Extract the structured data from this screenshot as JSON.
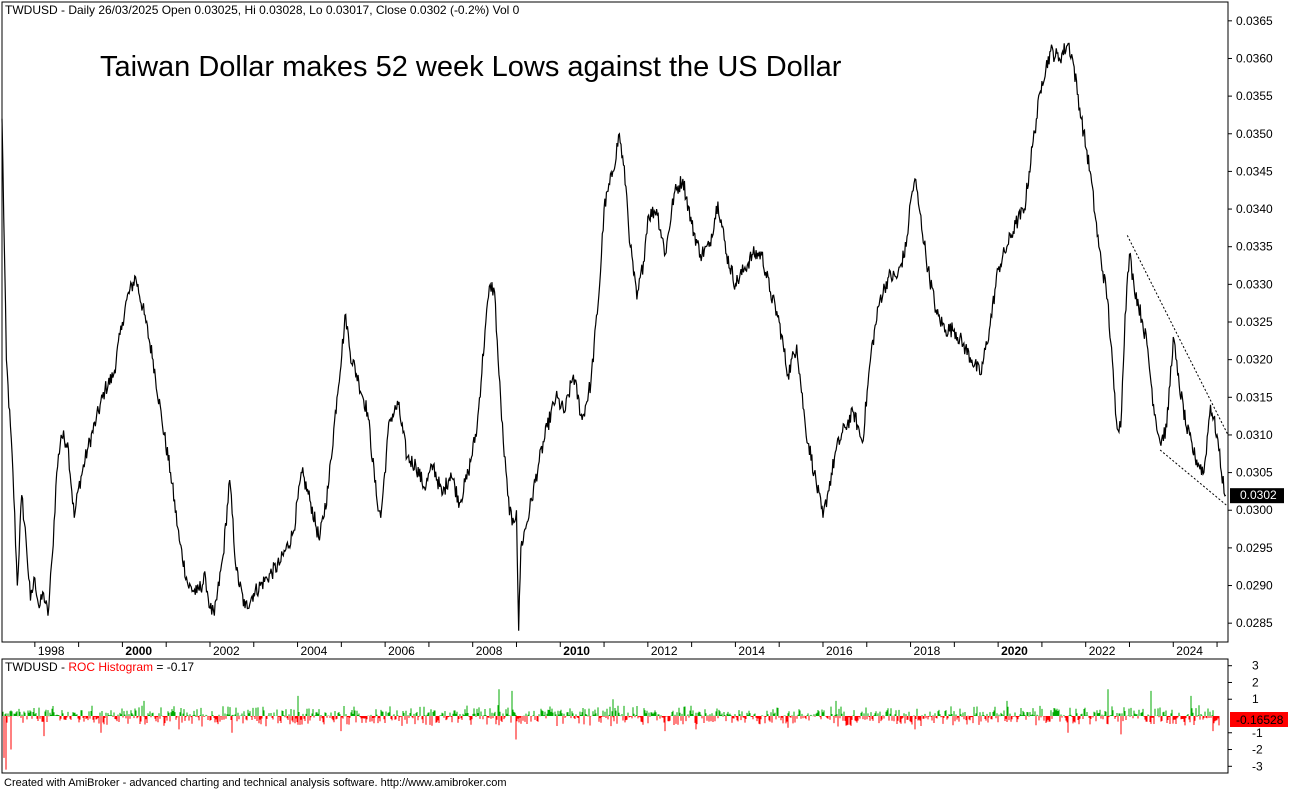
{
  "header": {
    "main_info": "TWDUSD - Daily 26/03/2025 Open 0.03025, Hi 0.03028, Lo 0.03017, Close 0.0302 (-0.2%) Vol 0",
    "sub_symbol": "TWDUSD - ",
    "sub_indicator": "ROC Histogram",
    "sub_value": " = -0.17"
  },
  "footer": "Created with AmiBroker - advanced charting and technical analysis software. http://www.amibroker.com",
  "colors": {
    "price_line": "#000000",
    "roc_up": "#00aa00",
    "roc_down": "#ff0000",
    "last_bg": "#000000",
    "roc_last_bg": "#ff0000"
  },
  "chart_data": [
    {
      "type": "line",
      "title": "Taiwan Dollar makes 52 week Lows against the US Dollar",
      "series_name": "TWDUSD",
      "x_label_ticks": [
        {
          "label": "1998",
          "year": 1998,
          "bold": false
        },
        {
          "label": "2000",
          "year": 2000,
          "bold": true
        },
        {
          "label": "2002",
          "year": 2002,
          "bold": false
        },
        {
          "label": "2004",
          "year": 2004,
          "bold": false
        },
        {
          "label": "2006",
          "year": 2006,
          "bold": false
        },
        {
          "label": "2008",
          "year": 2008,
          "bold": false
        },
        {
          "label": "2010",
          "year": 2010,
          "bold": true
        },
        {
          "label": "2012",
          "year": 2012,
          "bold": false
        },
        {
          "label": "2014",
          "year": 2014,
          "bold": false
        },
        {
          "label": "2016",
          "year": 2016,
          "bold": false
        },
        {
          "label": "2018",
          "year": 2018,
          "bold": false
        },
        {
          "label": "2020",
          "year": 2020,
          "bold": true
        },
        {
          "label": "2022",
          "year": 2022,
          "bold": false
        },
        {
          "label": "2024",
          "year": 2024,
          "bold": false
        }
      ],
      "y_ticks": [
        "0.0285",
        "0.0290",
        "0.0295",
        "0.0300",
        "0.0305",
        "0.0310",
        "0.0315",
        "0.0320",
        "0.0325",
        "0.0330",
        "0.0335",
        "0.0340",
        "0.0345",
        "0.0350",
        "0.0355",
        "0.0360",
        "0.0365"
      ],
      "ylim": [
        0.02825,
        0.03675
      ],
      "xlim": [
        1997.25,
        2025.25
      ],
      "last_value_label": "0.0302",
      "last_value": 0.0302,
      "points": [
        [
          1997.25,
          0.0352
        ],
        [
          1997.35,
          0.032
        ],
        [
          1997.5,
          0.0305
        ],
        [
          1997.6,
          0.029
        ],
        [
          1997.7,
          0.0302
        ],
        [
          1997.8,
          0.0296
        ],
        [
          1997.9,
          0.0288
        ],
        [
          1998.0,
          0.0291
        ],
        [
          1998.1,
          0.0287
        ],
        [
          1998.2,
          0.0289
        ],
        [
          1998.3,
          0.0286
        ],
        [
          1998.4,
          0.0294
        ],
        [
          1998.5,
          0.0305
        ],
        [
          1998.6,
          0.031
        ],
        [
          1998.75,
          0.0309
        ],
        [
          1998.9,
          0.0299
        ],
        [
          1999.0,
          0.0303
        ],
        [
          1999.2,
          0.0308
        ],
        [
          1999.4,
          0.0312
        ],
        [
          1999.6,
          0.0316
        ],
        [
          1999.8,
          0.0318
        ],
        [
          2000.0,
          0.0325
        ],
        [
          2000.1,
          0.0328
        ],
        [
          2000.3,
          0.0331
        ],
        [
          2000.5,
          0.0326
        ],
        [
          2000.7,
          0.032
        ],
        [
          2000.9,
          0.0312
        ],
        [
          2001.1,
          0.0305
        ],
        [
          2001.3,
          0.0296
        ],
        [
          2001.5,
          0.029
        ],
        [
          2001.7,
          0.0289
        ],
        [
          2001.9,
          0.0291
        ],
        [
          2002.0,
          0.0287
        ],
        [
          2002.1,
          0.0286
        ],
        [
          2002.3,
          0.0294
        ],
        [
          2002.45,
          0.0304
        ],
        [
          2002.6,
          0.0292
        ],
        [
          2002.8,
          0.0287
        ],
        [
          2003.0,
          0.0289
        ],
        [
          2003.3,
          0.0291
        ],
        [
          2003.6,
          0.0293
        ],
        [
          2003.9,
          0.0297
        ],
        [
          2004.1,
          0.0305
        ],
        [
          2004.3,
          0.0301
        ],
        [
          2004.5,
          0.0296
        ],
        [
          2004.7,
          0.0303
        ],
        [
          2004.9,
          0.0315
        ],
        [
          2005.1,
          0.0326
        ],
        [
          2005.2,
          0.0321
        ],
        [
          2005.4,
          0.0317
        ],
        [
          2005.6,
          0.0313
        ],
        [
          2005.8,
          0.0302
        ],
        [
          2005.9,
          0.0299
        ],
        [
          2006.1,
          0.0312
        ],
        [
          2006.3,
          0.0314
        ],
        [
          2006.5,
          0.0307
        ],
        [
          2006.7,
          0.0306
        ],
        [
          2006.9,
          0.0303
        ],
        [
          2007.1,
          0.0306
        ],
        [
          2007.3,
          0.0302
        ],
        [
          2007.5,
          0.0305
        ],
        [
          2007.7,
          0.0301
        ],
        [
          2007.9,
          0.0305
        ],
        [
          2008.1,
          0.0311
        ],
        [
          2008.3,
          0.0325
        ],
        [
          2008.4,
          0.033
        ],
        [
          2008.5,
          0.0329
        ],
        [
          2008.6,
          0.0318
        ],
        [
          2008.7,
          0.0309
        ],
        [
          2008.8,
          0.0302
        ],
        [
          2008.9,
          0.0298
        ],
        [
          2009.0,
          0.03
        ],
        [
          2009.05,
          0.0284
        ],
        [
          2009.1,
          0.0295
        ],
        [
          2009.3,
          0.03
        ],
        [
          2009.5,
          0.0306
        ],
        [
          2009.7,
          0.0311
        ],
        [
          2009.9,
          0.0315
        ],
        [
          2010.1,
          0.0313
        ],
        [
          2010.3,
          0.0318
        ],
        [
          2010.5,
          0.0312
        ],
        [
          2010.7,
          0.0317
        ],
        [
          2010.9,
          0.033
        ],
        [
          2011.0,
          0.034
        ],
        [
          2011.2,
          0.0345
        ],
        [
          2011.35,
          0.035
        ],
        [
          2011.5,
          0.0343
        ],
        [
          2011.6,
          0.0335
        ],
        [
          2011.75,
          0.0328
        ],
        [
          2011.9,
          0.0333
        ],
        [
          2012.0,
          0.0339
        ],
        [
          2012.2,
          0.034
        ],
        [
          2012.4,
          0.0334
        ],
        [
          2012.6,
          0.0342
        ],
        [
          2012.8,
          0.0344
        ],
        [
          2013.0,
          0.0338
        ],
        [
          2013.2,
          0.0334
        ],
        [
          2013.4,
          0.0335
        ],
        [
          2013.6,
          0.0341
        ],
        [
          2013.8,
          0.0334
        ],
        [
          2014.0,
          0.033
        ],
        [
          2014.2,
          0.0332
        ],
        [
          2014.4,
          0.0334
        ],
        [
          2014.6,
          0.0334
        ],
        [
          2014.8,
          0.0329
        ],
        [
          2015.0,
          0.0325
        ],
        [
          2015.2,
          0.0318
        ],
        [
          2015.4,
          0.0322
        ],
        [
          2015.6,
          0.0311
        ],
        [
          2015.8,
          0.0305
        ],
        [
          2016.0,
          0.0299
        ],
        [
          2016.1,
          0.0302
        ],
        [
          2016.3,
          0.0308
        ],
        [
          2016.5,
          0.0311
        ],
        [
          2016.7,
          0.0313
        ],
        [
          2016.9,
          0.0309
        ],
        [
          2017.1,
          0.0321
        ],
        [
          2017.3,
          0.0328
        ],
        [
          2017.5,
          0.0331
        ],
        [
          2017.7,
          0.0331
        ],
        [
          2017.9,
          0.0335
        ],
        [
          2018.0,
          0.0341
        ],
        [
          2018.1,
          0.0344
        ],
        [
          2018.2,
          0.034
        ],
        [
          2018.4,
          0.0332
        ],
        [
          2018.6,
          0.0326
        ],
        [
          2018.8,
          0.0324
        ],
        [
          2019.0,
          0.0324
        ],
        [
          2019.2,
          0.0322
        ],
        [
          2019.4,
          0.032
        ],
        [
          2019.6,
          0.0318
        ],
        [
          2019.8,
          0.0324
        ],
        [
          2020.0,
          0.0332
        ],
        [
          2020.2,
          0.0335
        ],
        [
          2020.4,
          0.0338
        ],
        [
          2020.6,
          0.034
        ],
        [
          2020.8,
          0.0349
        ],
        [
          2021.0,
          0.0357
        ],
        [
          2021.2,
          0.0361
        ],
        [
          2021.4,
          0.036
        ],
        [
          2021.6,
          0.0362
        ],
        [
          2021.7,
          0.036
        ],
        [
          2021.9,
          0.0352
        ],
        [
          2022.1,
          0.0345
        ],
        [
          2022.3,
          0.0335
        ],
        [
          2022.5,
          0.0328
        ],
        [
          2022.7,
          0.0312
        ],
        [
          2022.8,
          0.0311
        ],
        [
          2022.9,
          0.0326
        ],
        [
          2023.0,
          0.0334
        ],
        [
          2023.1,
          0.033
        ],
        [
          2023.3,
          0.0325
        ],
        [
          2023.4,
          0.0322
        ],
        [
          2023.55,
          0.0314
        ],
        [
          2023.7,
          0.0309
        ],
        [
          2023.85,
          0.0311
        ],
        [
          2024.0,
          0.0323
        ],
        [
          2024.1,
          0.0318
        ],
        [
          2024.3,
          0.0311
        ],
        [
          2024.5,
          0.0307
        ],
        [
          2024.7,
          0.0305
        ],
        [
          2024.85,
          0.0314
        ],
        [
          2025.0,
          0.031
        ],
        [
          2025.1,
          0.0305
        ],
        [
          2025.2,
          0.0302
        ]
      ],
      "trendlines": [
        {
          "style": "dotted",
          "from": [
            2022.95,
            0.03365
          ],
          "to": [
            2025.25,
            0.031
          ]
        },
        {
          "style": "dotted",
          "from": [
            2023.7,
            0.0308
          ],
          "to": [
            2025.25,
            0.03005
          ]
        }
      ]
    },
    {
      "type": "bar",
      "title": "ROC Histogram",
      "y_ticks": [
        "3",
        "2",
        "1",
        "-1",
        "-2",
        "-3"
      ],
      "ylim": [
        -3.4,
        3.4
      ],
      "last_value_label": "-0.16528",
      "last_value": -0.17,
      "typical_amplitude": 0.5,
      "spikes": [
        [
          1997.3,
          -2.5
        ],
        [
          1997.35,
          -3.2
        ],
        [
          1997.45,
          -2.0
        ],
        [
          1998.2,
          -1.2
        ],
        [
          1999.5,
          -1.0
        ],
        [
          2000.5,
          0.9
        ],
        [
          2001.3,
          -0.8
        ],
        [
          2002.5,
          -1.0
        ],
        [
          2004.0,
          1.2
        ],
        [
          2005.0,
          -0.9
        ],
        [
          2008.6,
          1.6
        ],
        [
          2008.9,
          1.5
        ],
        [
          2009.0,
          -1.4
        ],
        [
          2011.2,
          1.0
        ],
        [
          2012.4,
          -0.9
        ],
        [
          2013.1,
          -0.8
        ],
        [
          2015.2,
          -0.7
        ],
        [
          2016.3,
          0.9
        ],
        [
          2018.1,
          -0.8
        ],
        [
          2020.2,
          0.9
        ],
        [
          2021.6,
          -1.0
        ],
        [
          2022.5,
          1.6
        ],
        [
          2022.8,
          -1.1
        ],
        [
          2023.5,
          1.5
        ],
        [
          2024.4,
          1.2
        ],
        [
          2024.9,
          -0.9
        ]
      ]
    }
  ]
}
